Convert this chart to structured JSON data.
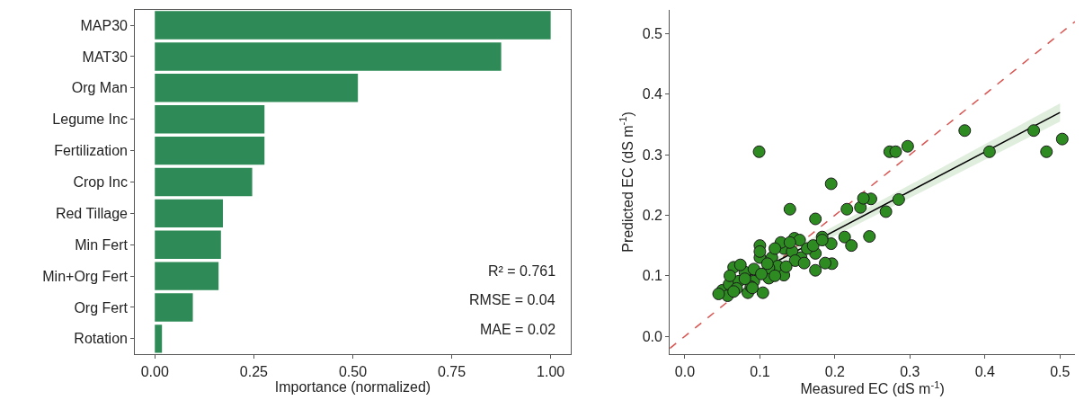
{
  "chart_data": [
    {
      "type": "bar",
      "orientation": "horizontal",
      "categories": [
        "MAP30",
        "MAT30",
        "Org Man",
        "Legume Inc",
        "Fertilization",
        "Crop Inc",
        "Red Tillage",
        "Min Fert",
        "Min+Org Fert",
        "Org Fert",
        "Rotation"
      ],
      "values": [
        1.0,
        0.875,
        0.513,
        0.277,
        0.277,
        0.246,
        0.172,
        0.167,
        0.161,
        0.096,
        0.018
      ],
      "color": "#2e8b57",
      "xlim": [
        -0.05,
        1.05
      ],
      "xticks": [
        {
          "value": 0,
          "label": "0.00"
        },
        {
          "value": 0.25,
          "label": "0.25"
        },
        {
          "value": 0.5,
          "label": "0.50"
        },
        {
          "value": 0.75,
          "label": "0.75"
        },
        {
          "value": 1,
          "label": "1.00"
        }
      ],
      "xlabel": "Importance (normalized)",
      "annotations": [
        "R² = 0.761",
        "RMSE = 0.04",
        "MAE = 0.02"
      ]
    },
    {
      "type": "scatter",
      "xlim": [
        -0.02,
        0.52
      ],
      "ylim": [
        -0.03,
        0.54
      ],
      "xticks": [
        {
          "value": 0,
          "label": "0.0"
        },
        0.1,
        0.2,
        0.3,
        0.4,
        0.5
      ],
      "yticks": [
        {
          "value": 0,
          "label": "0.0"
        },
        0.1,
        0.2,
        0.3,
        0.4,
        0.5
      ],
      "xlabel": "Measured EC (dS m$^{-1}$)",
      "ylabel": "Predicted EC (dS m$^{-1}$)",
      "marker": "circle",
      "series": [
        {
          "type": "line",
          "color": "#d9534f",
          "line_style": "dashed",
          "marker": "none",
          "x": [
            -0.02,
            0.52
          ],
          "values": [
            -0.02,
            0.52
          ]
        },
        {
          "type": "line",
          "color": "#000000",
          "marker": "none",
          "x": [
            0.04,
            0.5
          ],
          "values": [
            0.07,
            0.37
          ],
          "lower": [
            0.065,
            0.355
          ],
          "upper": [
            0.075,
            0.385
          ]
        },
        {
          "type": "scatter",
          "color": "#2e8b22",
          "x": [
            0.05,
            0.065,
            0.1,
            0.146,
            0.195,
            0.14,
            0.174,
            0.216,
            0.234,
            0.248,
            0.238,
            0.285,
            0.268,
            0.213,
            0.222,
            0.246,
            0.195,
            0.196,
            0.174,
            0.187,
            0.174,
            0.183,
            0.273,
            0.281,
            0.297,
            0.373,
            0.406,
            0.465,
            0.482,
            0.503,
            0.099,
            0.059,
            0.072,
            0.084,
            0.104,
            0.092,
            0.08,
            0.112,
            0.1,
            0.116,
            0.124,
            0.132,
            0.143,
            0.155,
            0.163,
            0.171,
            0.183,
            0.132,
            0.112,
            0.147,
            0.159,
            0.128,
            0.069,
            0.057,
            0.092,
            0.102,
            0.088,
            0.074,
            0.12,
            0.153,
            0.065,
            0.045,
            0.06,
            0.1,
            0.09,
            0.11,
            0.135,
            0.14,
            0.12,
            0.08
          ],
          "values": [
            0.076,
            0.114,
            0.15,
            0.162,
            0.252,
            0.21,
            0.194,
            0.21,
            0.213,
            0.227,
            0.228,
            0.226,
            0.206,
            0.164,
            0.15,
            0.165,
            0.153,
            0.12,
            0.109,
            0.121,
            0.137,
            0.164,
            0.305,
            0.305,
            0.314,
            0.34,
            0.305,
            0.34,
            0.305,
            0.326,
            0.305,
            0.086,
            0.091,
            0.072,
            0.072,
            0.091,
            0.106,
            0.096,
            0.13,
            0.13,
            0.116,
            0.145,
            0.14,
            0.13,
            0.145,
            0.15,
            0.159,
            0.101,
            0.113,
            0.125,
            0.121,
            0.155,
            0.079,
            0.067,
            0.111,
            0.103,
            0.082,
            0.118,
            0.145,
            0.159,
            0.074,
            0.07,
            0.1,
            0.14,
            0.08,
            0.12,
            0.115,
            0.155,
            0.1,
            0.095
          ]
        }
      ]
    }
  ]
}
